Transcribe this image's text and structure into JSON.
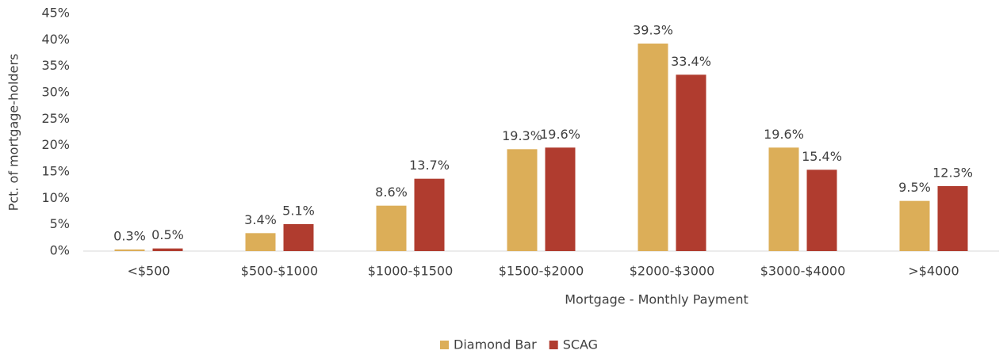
{
  "chart_data": {
    "type": "bar",
    "categories": [
      "<$500",
      "$500-$1000",
      "$1000-$1500",
      "$1500-$2000",
      "$2000-$3000",
      "$3000-$4000",
      ">$4000"
    ],
    "series": [
      {
        "name": "Diamond Bar",
        "color": "#dcae58",
        "values": [
          0.3,
          3.4,
          8.6,
          19.3,
          39.3,
          19.6,
          9.5
        ],
        "value_labels": [
          "0.3%",
          "3.4%",
          "8.6%",
          "19.3%",
          "39.3%",
          "19.6%",
          "9.5%"
        ]
      },
      {
        "name": "SCAG",
        "color": "#b03c2f",
        "values": [
          0.5,
          5.1,
          13.7,
          19.6,
          33.4,
          15.4,
          12.3
        ],
        "value_labels": [
          "0.5%",
          "5.1%",
          "13.7%",
          "19.6%",
          "33.4%",
          "15.4%",
          "12.3%"
        ]
      }
    ],
    "xlabel": "Mortgage - Monthly Payment",
    "ylabel": "Pct. of mortgage-holders",
    "ylim": [
      0,
      45
    ],
    "yticks": [
      {
        "value": 0,
        "label": "0%"
      },
      {
        "value": 5,
        "label": "5%"
      },
      {
        "value": 10,
        "label": "10%"
      },
      {
        "value": 15,
        "label": "15%"
      },
      {
        "value": 20,
        "label": "20%"
      },
      {
        "value": 25,
        "label": "25%"
      },
      {
        "value": 30,
        "label": "30%"
      },
      {
        "value": 35,
        "label": "35%"
      },
      {
        "value": 40,
        "label": "40%"
      },
      {
        "value": 45,
        "label": "45%"
      }
    ],
    "grid": false,
    "legend": "bottom"
  }
}
